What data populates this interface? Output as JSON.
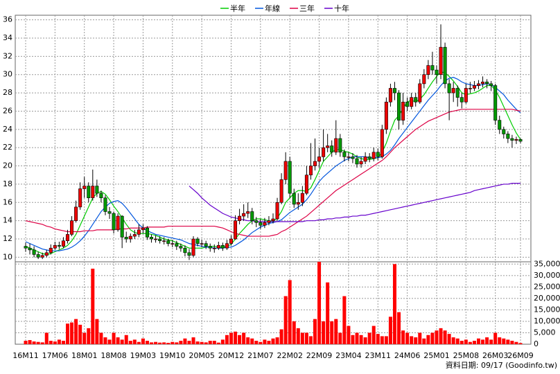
{
  "chart_data": {
    "type": "candlestick",
    "categories": [
      "16M11",
      null,
      null,
      null,
      null,
      null,
      null,
      "17M06",
      null,
      null,
      null,
      null,
      null,
      null,
      "18M01",
      null,
      null,
      null,
      null,
      null,
      null,
      "18M08",
      null,
      null,
      null,
      null,
      null,
      null,
      "19M03",
      null,
      null,
      null,
      null,
      null,
      null,
      "19M10",
      null,
      null,
      null,
      null,
      null,
      null,
      "20M05",
      null,
      null,
      null,
      null,
      null,
      null,
      "20M12",
      null,
      null,
      null,
      null,
      null,
      null,
      "21M07",
      null,
      null,
      null,
      null,
      null,
      null,
      "22M02",
      null,
      null,
      null,
      null,
      null,
      null,
      "22M09",
      null,
      null,
      null,
      null,
      null,
      null,
      "23M04",
      null,
      null,
      null,
      null,
      null,
      null,
      "23M11",
      null,
      null,
      null,
      null,
      null,
      null,
      "24M06",
      null,
      null,
      null,
      null,
      null,
      null,
      "25M01",
      null,
      null,
      null,
      null,
      null,
      null,
      "25M08",
      null,
      null,
      null,
      null,
      null,
      null,
      "26M03",
      null,
      null,
      null,
      null,
      null,
      "26M09"
    ],
    "open": [
      11.2,
      11.0,
      10.8,
      10.3,
      10.0,
      10.2,
      10.5,
      11.0,
      11.3,
      11.2,
      11.8,
      12.5,
      14.0,
      15.5,
      17.5,
      17.8,
      16.5,
      17.8,
      17.0,
      16.5,
      15.0,
      14.8,
      13.0,
      14.5,
      12.2,
      12.0,
      12.3,
      12.5,
      13.0,
      13.2,
      12.2,
      12.0,
      12.0,
      11.8,
      11.8,
      11.5,
      11.5,
      11.2,
      11.0,
      10.5,
      10.2,
      12.0,
      11.5,
      11.5,
      11.2,
      11.0,
      11.0,
      11.3,
      11.0,
      11.5,
      12.0,
      14.0,
      14.5,
      14.8,
      15.0,
      14.0,
      13.8,
      13.5,
      13.8,
      14.0,
      14.2,
      16.0,
      18.5,
      20.5,
      17.0,
      15.8,
      16.0,
      17.0,
      19.0,
      20.0,
      20.5,
      21.0,
      22.0,
      22.2,
      21.5,
      23.0,
      21.5,
      21.0,
      21.0,
      20.8,
      20.2,
      20.5,
      21.0,
      20.8,
      21.5,
      21.0,
      24.0,
      27.0,
      28.5,
      28.0,
      25.0,
      27.0,
      26.5,
      27.5,
      27.0,
      29.0,
      30.0,
      31.0,
      30.5,
      30.0,
      33.0,
      29.0,
      28.0,
      28.5,
      27.5,
      27.0,
      28.5,
      28.5,
      28.8,
      29.0,
      29.2,
      29.0,
      28.8,
      25.0,
      24.0,
      23.5,
      23.0,
      22.8,
      22.9
    ],
    "high": [
      11.6,
      11.5,
      11.2,
      10.6,
      10.5,
      10.8,
      11.4,
      11.7,
      11.7,
      12.2,
      13.0,
      14.5,
      16.2,
      18.2,
      18.8,
      18.2,
      19.6,
      18.5,
      17.3,
      16.8,
      15.5,
      15.0,
      14.8,
      14.6,
      12.8,
      12.6,
      13.0,
      13.6,
      13.6,
      13.4,
      12.5,
      12.4,
      12.3,
      12.2,
      12.0,
      11.9,
      11.8,
      11.5,
      11.3,
      10.9,
      12.3,
      12.2,
      11.9,
      11.8,
      11.5,
      11.4,
      11.7,
      11.6,
      11.9,
      12.4,
      14.6,
      15.3,
      15.8,
      16.0,
      15.4,
      14.4,
      14.2,
      14.3,
      14.5,
      14.8,
      16.5,
      19.2,
      21.5,
      21.0,
      17.5,
      17.0,
      17.8,
      20.0,
      22.5,
      23.0,
      22.0,
      24.0,
      23.5,
      22.8,
      25.0,
      23.5,
      21.8,
      21.5,
      21.4,
      21.2,
      21.0,
      21.5,
      21.4,
      22.0,
      21.9,
      24.5,
      27.5,
      29.0,
      29.2,
      28.3,
      28.0,
      27.5,
      28.0,
      28.0,
      29.5,
      30.6,
      31.6,
      32.5,
      31.0,
      35.5,
      33.5,
      29.5,
      29.2,
      28.8,
      28.0,
      29.0,
      29.2,
      29.3,
      29.4,
      29.8,
      29.5,
      29.3,
      29.0,
      25.5,
      24.3,
      23.8,
      23.4,
      23.2,
      23.0
    ],
    "low": [
      10.6,
      10.3,
      10.0,
      9.8,
      9.8,
      10.0,
      10.3,
      10.8,
      10.9,
      11.0,
      11.5,
      12.3,
      13.8,
      15.2,
      16.5,
      16.0,
      16.2,
      16.6,
      16.0,
      14.6,
      14.2,
      12.6,
      12.8,
      11.0,
      11.6,
      11.6,
      12.0,
      12.2,
      12.6,
      11.9,
      11.6,
      11.6,
      11.5,
      11.4,
      11.2,
      11.1,
      10.8,
      10.6,
      10.1,
      9.7,
      10.0,
      11.2,
      11.1,
      10.9,
      10.6,
      10.5,
      10.8,
      10.7,
      10.8,
      11.3,
      11.9,
      13.6,
      14.0,
      14.3,
      13.6,
      13.3,
      13.1,
      13.2,
      13.5,
      13.7,
      14.0,
      15.8,
      18.0,
      16.5,
      15.4,
      15.2,
      15.6,
      16.8,
      18.5,
      19.5,
      19.8,
      20.5,
      21.5,
      21.0,
      21.2,
      21.0,
      20.5,
      20.5,
      20.3,
      19.8,
      19.8,
      20.2,
      20.4,
      20.5,
      20.6,
      20.8,
      23.5,
      26.5,
      27.2,
      24.0,
      24.5,
      26.0,
      26.2,
      26.5,
      26.8,
      28.5,
      29.5,
      30.0,
      29.0,
      29.5,
      28.5,
      25.0,
      27.0,
      26.5,
      26.3,
      26.8,
      28.0,
      28.2,
      28.4,
      28.6,
      28.5,
      28.2,
      24.5,
      23.5,
      23.0,
      22.5,
      22.0,
      22.4,
      22.5
    ],
    "close": [
      11.0,
      10.8,
      10.3,
      10.0,
      10.2,
      10.5,
      11.0,
      11.3,
      11.2,
      11.8,
      12.5,
      14.0,
      15.5,
      17.5,
      17.8,
      16.5,
      17.8,
      17.0,
      16.5,
      15.0,
      14.8,
      13.0,
      14.5,
      12.2,
      12.0,
      12.3,
      12.5,
      13.0,
      13.2,
      12.2,
      12.0,
      12.0,
      11.8,
      11.8,
      11.5,
      11.5,
      11.2,
      11.0,
      10.5,
      10.2,
      12.0,
      11.5,
      11.5,
      11.2,
      11.0,
      11.0,
      11.3,
      11.0,
      11.5,
      12.0,
      14.0,
      14.5,
      14.8,
      15.0,
      14.0,
      13.8,
      13.5,
      13.8,
      14.0,
      14.2,
      16.0,
      18.5,
      20.5,
      17.0,
      15.8,
      16.0,
      17.0,
      19.0,
      20.0,
      20.5,
      21.0,
      22.0,
      22.2,
      21.5,
      23.0,
      21.5,
      21.0,
      21.0,
      20.8,
      20.2,
      20.5,
      21.0,
      20.8,
      21.5,
      21.0,
      24.0,
      27.0,
      28.5,
      28.0,
      25.0,
      27.0,
      26.5,
      27.5,
      27.0,
      29.0,
      30.0,
      31.0,
      30.5,
      30.0,
      33.0,
      29.0,
      28.0,
      28.5,
      27.5,
      27.0,
      28.5,
      28.5,
      28.8,
      29.0,
      29.2,
      29.0,
      28.8,
      25.0,
      24.0,
      23.5,
      23.0,
      22.8,
      22.9,
      22.7
    ],
    "up_color": "#ee0000",
    "down_color": "#009900",
    "series": [
      {
        "name": "半年",
        "color": "#00cc00",
        "values": [
          11.2,
          11.0,
          10.8,
          10.6,
          10.4,
          10.3,
          10.4,
          10.6,
          10.8,
          11.0,
          11.3,
          11.8,
          12.5,
          13.5,
          14.5,
          15.5,
          16.5,
          17.0,
          17.2,
          16.9,
          16.3,
          15.6,
          15.0,
          14.3,
          13.6,
          13.0,
          12.7,
          12.6,
          12.6,
          12.6,
          12.5,
          12.4,
          12.2,
          12.0,
          11.9,
          11.8,
          11.6,
          11.4,
          11.2,
          11.0,
          11.0,
          11.0,
          11.0,
          11.1,
          11.2,
          11.2,
          11.1,
          11.1,
          11.2,
          11.4,
          12.0,
          12.6,
          13.1,
          13.6,
          14.0,
          14.2,
          14.2,
          14.1,
          14.0,
          13.9,
          14.3,
          15.0,
          16.0,
          16.5,
          17.0,
          17.3,
          17.3,
          17.2,
          17.6,
          18.5,
          19.5,
          20.5,
          21.0,
          21.5,
          21.8,
          21.8,
          21.6,
          21.5,
          21.3,
          21.0,
          20.8,
          20.7,
          20.7,
          20.8,
          20.9,
          21.5,
          22.5,
          23.8,
          25.0,
          25.5,
          26.3,
          27.0,
          27.2,
          27.0,
          27.3,
          27.8,
          28.5,
          29.2,
          29.8,
          30.3,
          30.2,
          29.8,
          29.3,
          28.7,
          28.0,
          27.8,
          27.9,
          28.0,
          28.2,
          28.5,
          28.8,
          28.8,
          28.3,
          27.5,
          26.5,
          25.5,
          24.5,
          23.6,
          22.9
        ]
      },
      {
        "name": "年線",
        "color": "#0055dd",
        "values": [
          11.7,
          11.5,
          11.3,
          11.1,
          10.9,
          10.8,
          10.7,
          10.7,
          10.7,
          10.8,
          10.9,
          11.1,
          11.4,
          11.8,
          12.3,
          12.9,
          13.6,
          14.3,
          15.0,
          15.5,
          15.9,
          16.1,
          16.2,
          15.9,
          15.4,
          14.8,
          14.2,
          13.6,
          13.2,
          12.9,
          12.7,
          12.5,
          12.4,
          12.3,
          12.2,
          12.1,
          12.0,
          11.9,
          11.7,
          11.5,
          11.4,
          11.3,
          11.2,
          11.1,
          11.1,
          11.0,
          11.0,
          11.0,
          11.1,
          11.1,
          11.3,
          11.6,
          11.9,
          12.3,
          12.7,
          13.0,
          13.3,
          13.5,
          13.7,
          13.8,
          13.9,
          14.1,
          14.5,
          14.9,
          15.2,
          15.5,
          15.8,
          16.3,
          16.9,
          17.6,
          18.3,
          18.8,
          19.2,
          19.6,
          20.0,
          20.3,
          20.6,
          20.8,
          21.0,
          21.0,
          21.0,
          21.0,
          20.9,
          20.9,
          20.9,
          21.0,
          21.3,
          21.7,
          22.3,
          23.0,
          23.6,
          24.2,
          24.8,
          25.4,
          26.0,
          26.6,
          27.2,
          27.7,
          28.2,
          28.8,
          29.3,
          29.6,
          29.7,
          29.5,
          29.2,
          29.0,
          28.9,
          28.8,
          28.8,
          28.9,
          29.0,
          28.9,
          28.6,
          28.2,
          27.8,
          27.2,
          26.7,
          26.2,
          25.8
        ]
      },
      {
        "name": "三年",
        "color": "#dd0044",
        "values": [
          14.0,
          13.9,
          13.8,
          13.7,
          13.6,
          13.4,
          13.3,
          13.1,
          13.0,
          12.9,
          12.8,
          12.8,
          12.8,
          12.8,
          12.9,
          12.9,
          12.9,
          13.0,
          13.0,
          13.0,
          13.0,
          13.0,
          13.1,
          13.1,
          13.1,
          13.2,
          13.2,
          13.2,
          13.2,
          13.3,
          13.3,
          13.3,
          13.3,
          13.3,
          13.4,
          13.4,
          13.4,
          13.4,
          13.4,
          13.4,
          13.4,
          13.4,
          13.4,
          13.4,
          13.4,
          13.4,
          13.3,
          13.2,
          13.0,
          12.8,
          12.6,
          12.5,
          12.4,
          12.3,
          12.3,
          12.3,
          12.3,
          12.3,
          12.3,
          12.4,
          12.5,
          12.8,
          13.0,
          13.3,
          13.6,
          13.9,
          14.2,
          14.5,
          14.9,
          15.3,
          15.7,
          16.1,
          16.5,
          16.9,
          17.3,
          17.6,
          17.9,
          18.2,
          18.5,
          18.8,
          19.1,
          19.4,
          19.7,
          20.0,
          20.3,
          20.6,
          21.0,
          21.5,
          22.0,
          22.4,
          22.8,
          23.2,
          23.6,
          24.0,
          24.3,
          24.6,
          24.9,
          25.1,
          25.3,
          25.5,
          25.7,
          25.9,
          26.0,
          26.1,
          26.2,
          26.2,
          26.2,
          26.2,
          26.2,
          26.2,
          26.2,
          26.2,
          26.2,
          26.2,
          26.2,
          26.2,
          26.2,
          26.1,
          26.0
        ]
      },
      {
        "name": "十年",
        "color": "#6600cc",
        "values": [
          null,
          null,
          null,
          null,
          null,
          null,
          null,
          null,
          null,
          null,
          null,
          null,
          null,
          null,
          null,
          null,
          null,
          null,
          null,
          null,
          null,
          null,
          null,
          null,
          null,
          null,
          null,
          null,
          null,
          null,
          null,
          null,
          null,
          null,
          null,
          null,
          null,
          null,
          null,
          17.8,
          17.4,
          17.0,
          16.5,
          16.1,
          15.7,
          15.4,
          15.1,
          14.8,
          14.6,
          14.4,
          14.3,
          14.2,
          14.1,
          14.0,
          14.0,
          13.9,
          13.9,
          13.9,
          13.9,
          13.9,
          13.9,
          13.9,
          13.9,
          13.9,
          13.9,
          13.9,
          13.9,
          14.0,
          14.0,
          14.0,
          14.1,
          14.1,
          14.2,
          14.2,
          14.3,
          14.3,
          14.4,
          14.4,
          14.5,
          14.5,
          14.6,
          14.6,
          14.7,
          14.8,
          14.9,
          15.0,
          15.1,
          15.2,
          15.3,
          15.4,
          15.5,
          15.6,
          15.7,
          15.8,
          15.9,
          16.0,
          16.1,
          16.2,
          16.3,
          16.4,
          16.5,
          16.6,
          16.7,
          16.8,
          16.9,
          17.0,
          17.1,
          17.3,
          17.4,
          17.5,
          17.6,
          17.7,
          17.8,
          17.9,
          18.0,
          18.0,
          18.1,
          18.1,
          18.1
        ]
      }
    ],
    "volume": {
      "color": "#ff0000",
      "values": [
        1500,
        1800,
        1200,
        1000,
        800,
        5000,
        1500,
        1200,
        2000,
        1500,
        9000,
        9500,
        11000,
        8500,
        5000,
        7000,
        33000,
        11000,
        5000,
        3000,
        2000,
        5000,
        3000,
        2000,
        4000,
        1500,
        2000,
        1000,
        2500,
        1500,
        800,
        1000,
        700,
        800,
        600,
        1000,
        800,
        1500,
        2500,
        1500,
        3000,
        1200,
        1000,
        800,
        1500,
        1500,
        700,
        2000,
        4000,
        5000,
        5500,
        4000,
        5000,
        3000,
        2500,
        1500,
        1000,
        2000,
        1500,
        2500,
        3000,
        6500,
        21000,
        28000,
        10000,
        7000,
        5000,
        5000,
        3500,
        11000,
        36000,
        10000,
        27000,
        10000,
        11000,
        5000,
        21000,
        8000,
        4000,
        5000,
        4000,
        3000,
        5000,
        8000,
        4500,
        3500,
        3500,
        12000,
        35000,
        14000,
        6000,
        5000,
        3500,
        3000,
        5000,
        2500,
        4000,
        5000,
        6000,
        7000,
        6000,
        4500,
        3000,
        2500,
        1500,
        2000,
        1000,
        1500,
        2500,
        2000,
        3000,
        2000,
        5000,
        3000,
        2500,
        2000,
        1500,
        1000,
        500
      ],
      "ylim": [
        0,
        36000
      ],
      "yticks": [
        0,
        {
          "value": 5000,
          "label": "5,000"
        },
        {
          "value": 10000,
          "label": "10,000"
        },
        {
          "value": 15000,
          "label": "15,000"
        },
        {
          "value": 20000,
          "label": "20,000"
        },
        {
          "value": 25000,
          "label": "25,000"
        },
        {
          "value": 30000,
          "label": "30,000"
        },
        {
          "value": 35000,
          "label": "35,000"
        }
      ]
    },
    "ylim": [
      9.5,
      36.5
    ],
    "yticks": [
      10,
      12,
      14,
      16,
      18,
      20,
      22,
      24,
      26,
      28,
      30,
      32,
      34,
      36
    ],
    "grid": true,
    "legend": "top",
    "footer": "資料日期: 09/17 (Goodinfo.tw)"
  }
}
